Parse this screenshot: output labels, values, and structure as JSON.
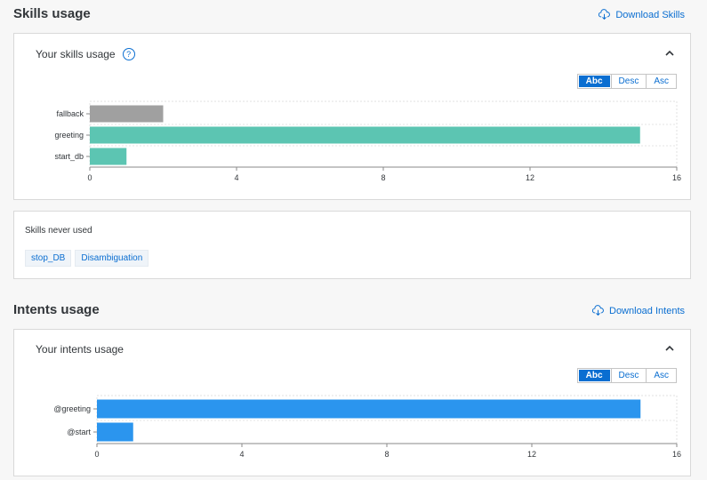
{
  "skills_section": {
    "title": "Skills usage",
    "download_label": "Download Skills",
    "card_title": "Your skills usage",
    "sort_options": [
      "Abc",
      "Desc",
      "Asc"
    ],
    "active_sort": "Abc"
  },
  "never_used": {
    "label": "Skills never used",
    "chips": [
      "stop_DB",
      "Disambiguation"
    ]
  },
  "intents_section": {
    "title": "Intents usage",
    "download_label": "Download Intents",
    "card_title": "Your intents usage",
    "sort_options": [
      "Abc",
      "Desc",
      "Asc"
    ],
    "active_sort": "Abc"
  },
  "colors": {
    "accent": "#0a6ed1",
    "skill_bar_teal": "#5cc5b2",
    "skill_bar_gray": "#a0a0a0",
    "intent_bar_blue": "#2b95ee"
  },
  "chart_data": [
    {
      "type": "bar",
      "orientation": "horizontal",
      "categories": [
        "fallback",
        "greeting",
        "start_db"
      ],
      "values": [
        2,
        15,
        1
      ],
      "bar_colors": [
        "#a0a0a0",
        "#5cc5b2",
        "#5cc5b2"
      ],
      "xlim": [
        0,
        16
      ],
      "xticks": [
        0,
        4,
        8,
        12,
        16
      ],
      "grid": true
    },
    {
      "type": "bar",
      "orientation": "horizontal",
      "categories": [
        "@greeting",
        "@start"
      ],
      "values": [
        15,
        1
      ],
      "bar_colors": [
        "#2b95ee",
        "#2b95ee"
      ],
      "xlim": [
        0,
        16
      ],
      "xticks": [
        0,
        4,
        8,
        12,
        16
      ],
      "grid": true
    }
  ]
}
